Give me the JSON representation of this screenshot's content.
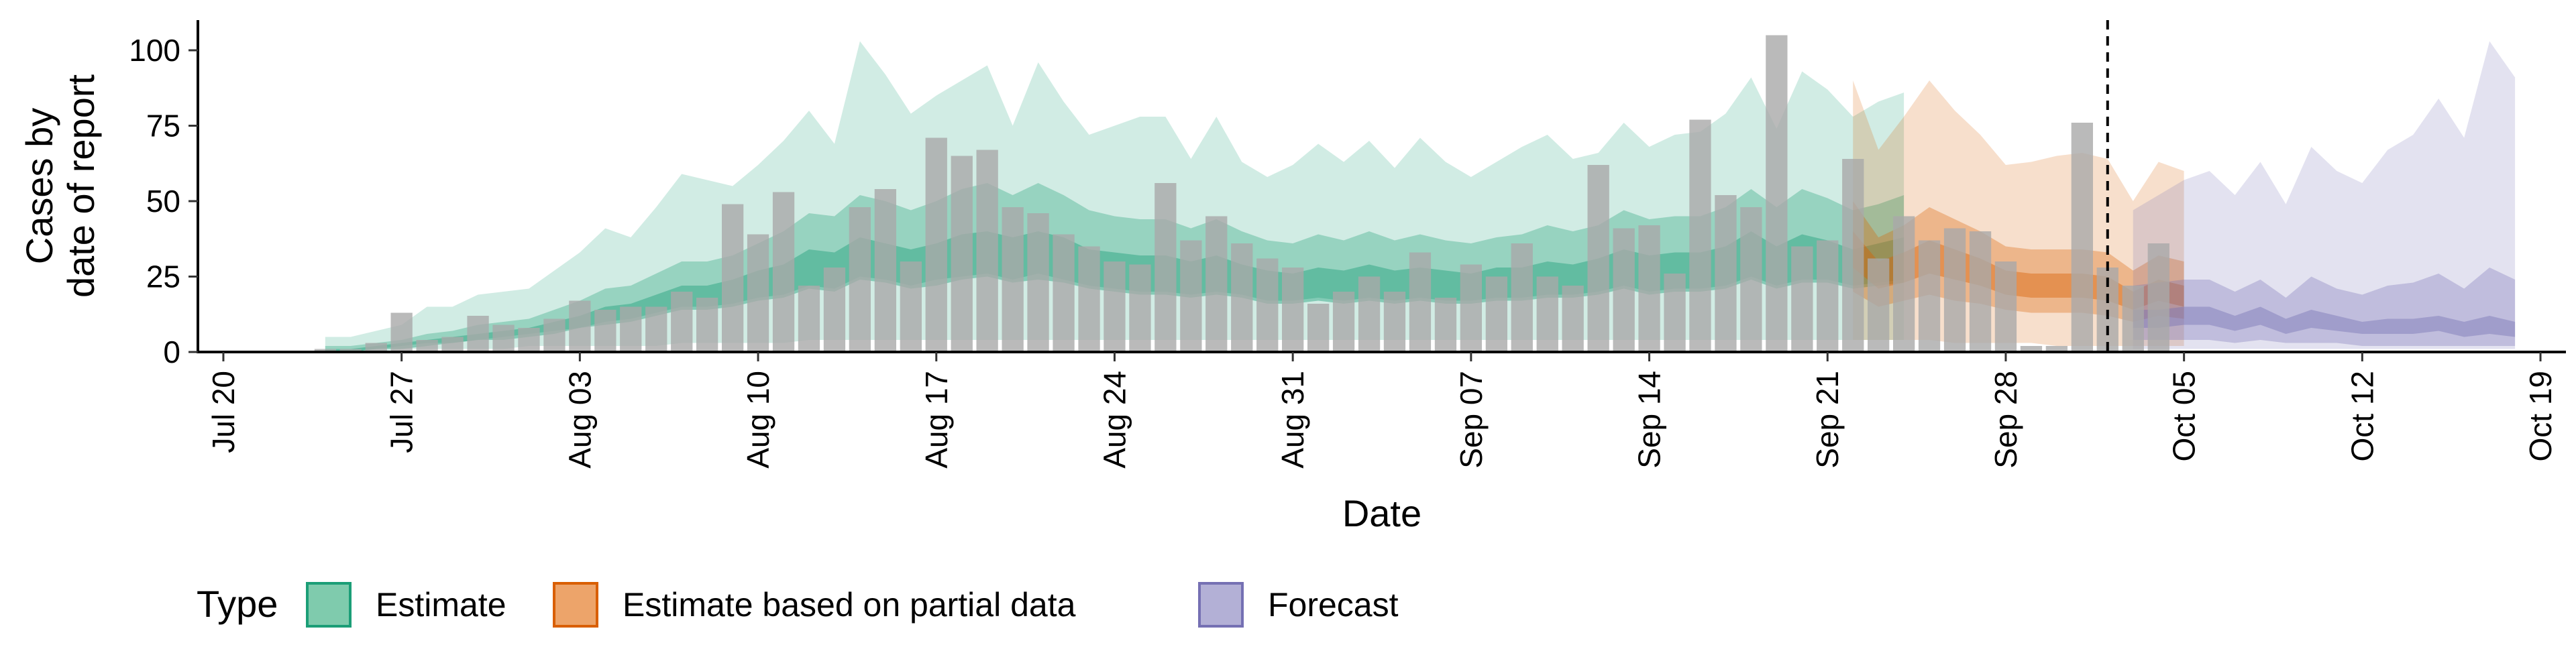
{
  "chart_data": {
    "type": "area",
    "xlabel": "Date",
    "ylabel": [
      "Cases by",
      "date of report"
    ],
    "ylim": [
      0,
      110
    ],
    "yticks": [
      0,
      25,
      50,
      75,
      100
    ],
    "xticks": [
      "2020-07-20",
      "2020-07-27",
      "2020-08-03",
      "2020-08-10",
      "2020-08-17",
      "2020-08-24",
      "2020-08-31",
      "2020-09-07",
      "2020-09-14",
      "2020-09-21",
      "2020-09-28",
      "2020-10-05",
      "2020-10-12",
      "2020-10-19"
    ],
    "xtick_labels": [
      "Jul 20",
      "Jul 27",
      "Aug 03",
      "Aug 10",
      "Aug 17",
      "Aug 24",
      "Aug 31",
      "Sep 07",
      "Sep 14",
      "Sep 21",
      "Sep 28",
      "Oct 05",
      "Oct 12",
      "Oct 19"
    ],
    "xlim": [
      "2020-07-19",
      "2020-10-20"
    ],
    "vline": "2020-10-02",
    "legend": {
      "position": "bottom",
      "title": "Type",
      "entries": [
        {
          "label": "Estimate",
          "fill": "#7fcbad",
          "stroke": "#1b9e77"
        },
        {
          "label": "Estimate based on partial data",
          "fill": "#eda46a",
          "stroke": "#d95f02"
        },
        {
          "label": "Forecast",
          "fill": "#b3b0d6",
          "stroke": "#7570b3"
        }
      ]
    },
    "colors": {
      "Estimate": "#1b9e77",
      "Estimate based on partial data": "#d95f02",
      "Forecast": "#7570b3",
      "bars": "#a9a9a9"
    },
    "reported_cases": {
      "start": "2020-07-24",
      "values": [
        1,
        1,
        3,
        13,
        4,
        5,
        12,
        9,
        8,
        11,
        17,
        14,
        15,
        15,
        20,
        18,
        49,
        39,
        53,
        22,
        28,
        48,
        54,
        30,
        71,
        65,
        67,
        48,
        46,
        39,
        35,
        30,
        29,
        56,
        37,
        45,
        36,
        31,
        28,
        16,
        20,
        25,
        20,
        33,
        18,
        29,
        25,
        36,
        25,
        22,
        62,
        41,
        42,
        26,
        77,
        52,
        48,
        105,
        35,
        37,
        64,
        31,
        45,
        37,
        41,
        40,
        30,
        2,
        2,
        76,
        28,
        22,
        36
      ]
    },
    "series": [
      {
        "name": "Estimate",
        "start": "2020-07-24",
        "upper90": [
          5,
          5,
          7,
          9,
          15,
          15,
          19,
          20,
          21,
          27,
          33,
          41,
          38,
          48,
          59,
          57,
          55,
          62,
          70,
          80,
          69,
          103,
          92,
          79,
          85,
          90,
          95,
          75,
          96,
          83,
          72,
          75,
          78,
          78,
          64,
          78,
          63,
          58,
          62,
          69,
          63,
          70,
          61,
          71,
          63,
          58,
          63,
          68,
          72,
          64,
          66,
          76,
          68,
          72,
          73,
          79,
          91,
          74,
          93,
          87,
          78,
          83,
          86
        ],
        "lower90": [
          0,
          0,
          0,
          1,
          1,
          1,
          1,
          1,
          2,
          2,
          2,
          2,
          2,
          2,
          3,
          3,
          3,
          3,
          3,
          4,
          4,
          4,
          4,
          4,
          4,
          4,
          4,
          4,
          4,
          4,
          4,
          4,
          4,
          4,
          4,
          4,
          4,
          4,
          4,
          4,
          4,
          4,
          4,
          4,
          4,
          4,
          4,
          4,
          4,
          4,
          4,
          4,
          4,
          4,
          4,
          4,
          4,
          4,
          4,
          4,
          4,
          4,
          4
        ],
        "upper50": [
          2,
          2,
          3,
          4,
          6,
          7,
          9,
          10,
          11,
          14,
          17,
          21,
          22,
          26,
          30,
          30,
          32,
          36,
          40,
          46,
          45,
          52,
          50,
          47,
          50,
          54,
          56,
          52,
          56,
          52,
          47,
          45,
          44,
          44,
          41,
          44,
          40,
          37,
          36,
          39,
          37,
          40,
          37,
          39,
          37,
          36,
          38,
          39,
          42,
          40,
          42,
          47,
          44,
          45,
          45,
          48,
          54,
          48,
          54,
          51,
          47,
          49,
          52
        ],
        "lower50": [
          0,
          0,
          1,
          2,
          3,
          3,
          4,
          5,
          6,
          7,
          8,
          10,
          11,
          13,
          15,
          15,
          16,
          18,
          19,
          22,
          21,
          25,
          24,
          22,
          24,
          25,
          26,
          24,
          26,
          24,
          22,
          21,
          20,
          20,
          19,
          20,
          19,
          17,
          17,
          18,
          17,
          18,
          17,
          18,
          17,
          17,
          18,
          18,
          19,
          19,
          20,
          22,
          20,
          21,
          21,
          22,
          25,
          22,
          24,
          24,
          22,
          23,
          24
        ],
        "upper20": [
          1,
          1,
          2,
          3,
          4,
          5,
          6,
          7,
          8,
          10,
          12,
          15,
          16,
          19,
          22,
          22,
          24,
          27,
          29,
          34,
          33,
          38,
          36,
          34,
          36,
          39,
          40,
          38,
          40,
          38,
          34,
          33,
          32,
          32,
          30,
          32,
          29,
          27,
          26,
          28,
          27,
          29,
          27,
          28,
          27,
          26,
          28,
          28,
          30,
          29,
          31,
          34,
          32,
          33,
          33,
          35,
          40,
          35,
          39,
          37,
          34,
          36,
          38
        ],
        "lower20": [
          0,
          0,
          1,
          1,
          2,
          3,
          4,
          4,
          5,
          6,
          8,
          9,
          10,
          12,
          14,
          14,
          15,
          17,
          18,
          21,
          20,
          24,
          23,
          21,
          22,
          24,
          25,
          23,
          24,
          23,
          21,
          20,
          19,
          19,
          18,
          19,
          18,
          16,
          16,
          17,
          16,
          17,
          16,
          17,
          16,
          16,
          17,
          17,
          18,
          18,
          19,
          21,
          19,
          20,
          20,
          21,
          24,
          21,
          23,
          23,
          21,
          22,
          23
        ]
      },
      {
        "name": "Estimate based on partial data",
        "start": "2020-09-22",
        "upper90": [
          90,
          67,
          78,
          90,
          80,
          72,
          62,
          63,
          65,
          66,
          64,
          50,
          63,
          60
        ],
        "lower90": [
          4,
          4,
          4,
          4,
          3,
          3,
          3,
          3,
          2,
          2,
          2,
          2,
          2,
          2
        ],
        "upper50": [
          50,
          38,
          42,
          48,
          44,
          40,
          35,
          34,
          34,
          34,
          33,
          27,
          32,
          30
        ],
        "lower50": [
          20,
          15,
          17,
          19,
          17,
          16,
          14,
          13,
          13,
          13,
          12,
          10,
          12,
          11
        ],
        "upper20": [
          40,
          30,
          33,
          37,
          34,
          31,
          27,
          26,
          26,
          26,
          25,
          20,
          24,
          22
        ],
        "lower20": [
          28,
          21,
          23,
          26,
          24,
          22,
          19,
          18,
          18,
          18,
          17,
          14,
          17,
          15
        ]
      },
      {
        "name": "Forecast",
        "start": "2020-10-03",
        "upper90": [
          47,
          52,
          57,
          60,
          52,
          63,
          49,
          68,
          60,
          56,
          67,
          72,
          84,
          71,
          103,
          91
        ],
        "lower90": [
          1,
          1,
          1,
          1,
          1,
          1,
          1,
          1,
          1,
          1,
          1,
          1,
          1,
          1,
          1,
          1
        ],
        "upper50": [
          22,
          23,
          24,
          24,
          20,
          24,
          18,
          25,
          21,
          19,
          22,
          23,
          26,
          21,
          28,
          24
        ],
        "lower50": [
          4,
          4,
          4,
          4,
          3,
          4,
          3,
          3,
          3,
          2,
          2,
          2,
          2,
          2,
          2,
          2
        ],
        "upper20": [
          14,
          14,
          15,
          15,
          12,
          15,
          11,
          14,
          12,
          10,
          11,
          11,
          12,
          10,
          12,
          10
        ],
        "lower20": [
          8,
          8,
          9,
          9,
          7,
          9,
          6,
          8,
          7,
          6,
          6,
          6,
          7,
          5,
          6,
          5
        ]
      }
    ]
  }
}
